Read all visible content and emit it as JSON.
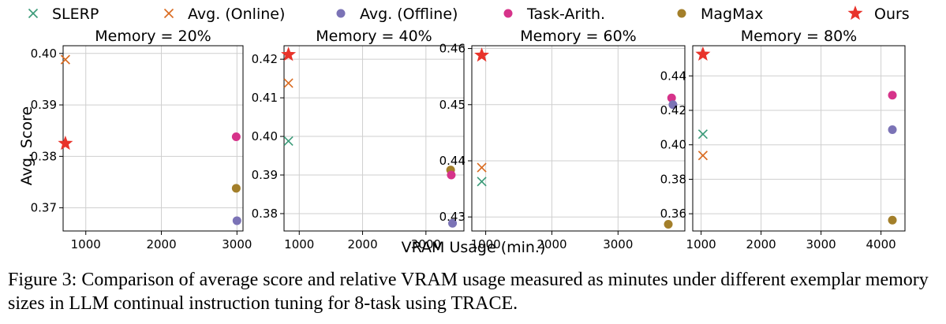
{
  "colors": {
    "SLERP": "#3a9a78",
    "Avg. (Online)": "#d96a1f",
    "Avg. (Offline)": "#7b73b6",
    "Task-Arith.": "#d6338a",
    "MagMax": "#a37f2a",
    "Ours": "#e8332a"
  },
  "legend": [
    {
      "name": "SLERP",
      "marker": "x"
    },
    {
      "name": "Avg. (Online)",
      "marker": "x"
    },
    {
      "name": "Avg. (Offline)",
      "marker": "circle"
    },
    {
      "name": "Task-Arith.",
      "marker": "circle"
    },
    {
      "name": "MagMax",
      "marker": "circle"
    },
    {
      "name": "Ours",
      "marker": "star"
    }
  ],
  "xlabel": "VRAM Usage (min.)",
  "ylabel": "Avg. Score",
  "caption": "Figure 3: Comparison of average score and relative VRAM usage measured as minutes under different exemplar memory sizes in LLM continual instruction tuning for 8-task using TRACE.",
  "chart_data": [
    {
      "type": "scatter",
      "title": "Memory = 20%",
      "xlim": [
        700,
        3080
      ],
      "ylim": [
        0.3655,
        0.4015
      ],
      "xticks": [
        1000,
        2000,
        3000
      ],
      "yticks": [
        0.37,
        0.38,
        0.39,
        0.4
      ],
      "ytick_labels": [
        "0.37",
        "0.38",
        "0.39",
        "0.40"
      ],
      "points": [
        {
          "method": "Avg. (Online)",
          "x": 730,
          "y": 0.3988
        },
        {
          "method": "Ours",
          "x": 730,
          "y": 0.3825
        },
        {
          "method": "Task-Arith.",
          "x": 2990,
          "y": 0.3838
        },
        {
          "method": "MagMax",
          "x": 2990,
          "y": 0.3738
        },
        {
          "method": "Avg. (Offline)",
          "x": 3000,
          "y": 0.3675
        }
      ]
    },
    {
      "type": "scatter",
      "title": "Memory = 40%",
      "xlim": [
        760,
        3600
      ],
      "ylim": [
        0.3755,
        0.4235
      ],
      "xticks": [
        1000,
        2000,
        3000
      ],
      "yticks": [
        0.38,
        0.39,
        0.4,
        0.41,
        0.42
      ],
      "ytick_labels": [
        "0.38",
        "0.39",
        "0.40",
        "0.41",
        "0.42"
      ],
      "points": [
        {
          "method": "SLERP",
          "x": 830,
          "y": 0.3988
        },
        {
          "method": "Avg. (Online)",
          "x": 830,
          "y": 0.4138
        },
        {
          "method": "Ours",
          "x": 830,
          "y": 0.4212
        },
        {
          "method": "MagMax",
          "x": 3390,
          "y": 0.3913
        },
        {
          "method": "Task-Arith.",
          "x": 3400,
          "y": 0.39
        },
        {
          "method": "Avg. (Offline)",
          "x": 3420,
          "y": 0.3775
        }
      ]
    },
    {
      "type": "scatter",
      "title": "Memory = 60%",
      "xlim": [
        790,
        4010
      ],
      "ylim": [
        0.4275,
        0.4605
      ],
      "xticks": [
        1000,
        2000,
        3000
      ],
      "yticks": [
        0.43,
        0.44,
        0.45,
        0.46
      ],
      "ytick_labels": [
        "0.43",
        "0.44",
        "0.45",
        "0.46"
      ],
      "points": [
        {
          "method": "SLERP",
          "x": 940,
          "y": 0.4363
        },
        {
          "method": "Avg. (Online)",
          "x": 940,
          "y": 0.4388
        },
        {
          "method": "Ours",
          "x": 940,
          "y": 0.4588
        },
        {
          "method": "Task-Arith.",
          "x": 3810,
          "y": 0.4512
        },
        {
          "method": "Avg. (Offline)",
          "x": 3830,
          "y": 0.45
        },
        {
          "method": "MagMax",
          "x": 3760,
          "y": 0.4287
        }
      ]
    },
    {
      "type": "scatter",
      "title": "Memory = 80%",
      "xlim": [
        860,
        4400
      ],
      "ylim": [
        0.35,
        0.4575
      ],
      "xticks": [
        1000,
        2000,
        3000,
        4000
      ],
      "yticks": [
        0.36,
        0.38,
        0.4,
        0.42,
        0.44
      ],
      "ytick_labels": [
        "0.36",
        "0.38",
        "0.40",
        "0.42",
        "0.44"
      ],
      "points": [
        {
          "method": "SLERP",
          "x": 1030,
          "y": 0.4062
        },
        {
          "method": "Avg. (Online)",
          "x": 1030,
          "y": 0.3938
        },
        {
          "method": "Ours",
          "x": 1030,
          "y": 0.4525
        },
        {
          "method": "Task-Arith.",
          "x": 4190,
          "y": 0.4288
        },
        {
          "method": "Avg. (Offline)",
          "x": 4190,
          "y": 0.4088
        },
        {
          "method": "MagMax",
          "x": 4190,
          "y": 0.3563
        }
      ]
    }
  ]
}
